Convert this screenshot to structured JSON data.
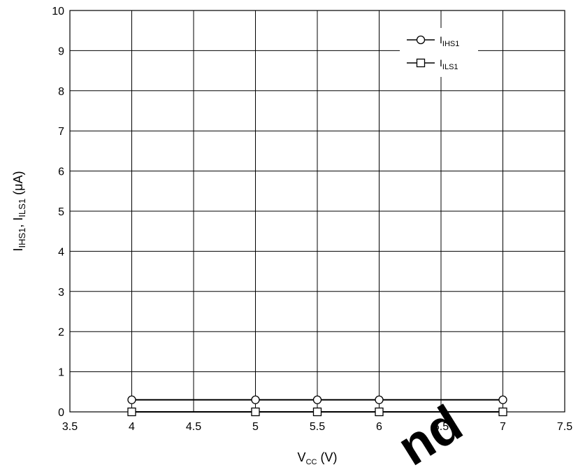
{
  "chart_data": {
    "type": "line",
    "title": "",
    "xlabel": {
      "main": "V",
      "sub": "CC",
      "unit": " (V)"
    },
    "ylabel": {
      "p1": "I",
      "s1": "IHS1",
      "p2": ", I",
      "s2": "ILS1",
      "unit": " (μA)"
    },
    "xlim": [
      3.5,
      7.5
    ],
    "ylim": [
      0,
      10
    ],
    "xticks": [
      3.5,
      4,
      4.5,
      5,
      5.5,
      6,
      6.5,
      7,
      7.5
    ],
    "xtick_labels": [
      "3.5",
      "4",
      "4.5",
      "5",
      "5.5",
      "6",
      "6.5",
      "7",
      "7.5"
    ],
    "yticks": [
      0,
      1,
      2,
      3,
      4,
      5,
      6,
      7,
      8,
      9,
      10
    ],
    "ytick_labels": [
      "0",
      "1",
      "2",
      "3",
      "4",
      "5",
      "6",
      "7",
      "8",
      "9",
      "10"
    ],
    "grid": true,
    "legend_position": "top-right",
    "series": [
      {
        "name": "I",
        "sub": "IHS1",
        "marker": "circle",
        "x": [
          4,
          5,
          5.5,
          6,
          7
        ],
        "y": [
          0.3,
          0.3,
          0.3,
          0.3,
          0.3
        ],
        "color": "#000000"
      },
      {
        "name": "I",
        "sub": "ILS1",
        "marker": "square",
        "x": [
          4,
          5,
          5.5,
          6,
          7
        ],
        "y": [
          0,
          0,
          0,
          0,
          0
        ],
        "color": "#000000"
      }
    ]
  },
  "watermark": {
    "text": "nd",
    "color": "#e8201c"
  }
}
